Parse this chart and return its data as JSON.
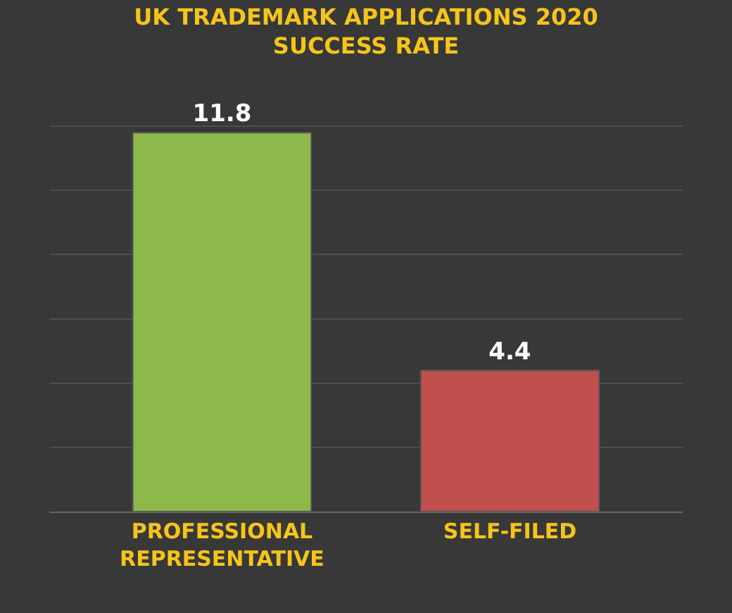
{
  "chart_data": {
    "type": "bar",
    "title": "UK TRADEMARK APPLICATIONS 2020\nSUCCESS RATE",
    "categories": [
      "PROFESSIONAL\nREPRESENTATIVE",
      "SELF-FILED"
    ],
    "values": [
      11.8,
      4.4
    ],
    "colors": [
      "#8db84a",
      "#c0504d"
    ],
    "data_labels": true,
    "tick_labels": "x",
    "grid": "y"
  }
}
